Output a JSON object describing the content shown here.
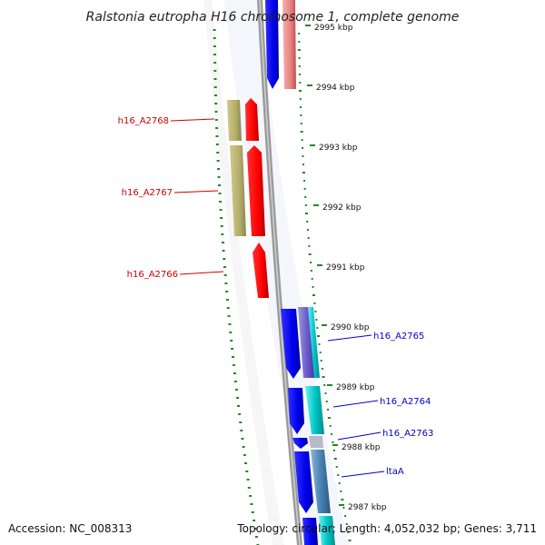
{
  "title": "Ralstonia eutropha H16 chromosome 1, complete genome",
  "footer": {
    "accession": "Accession: NC_008313",
    "topology": "Topology: circular; Length: 4,052,032 bp; Genes: 3,711"
  },
  "scale_labels": [
    "2995 kbp",
    "2994 kbp",
    "2993 kbp",
    "2992 kbp",
    "2991 kbp",
    "2990 kbp",
    "2989 kbp",
    "2988 kbp",
    "2987 kbp"
  ],
  "gene_labels": [
    {
      "name": "h16_A2768",
      "color": "#cc0000"
    },
    {
      "name": "h16_A2767",
      "color": "#cc0000"
    },
    {
      "name": "h16_A2766",
      "color": "#cc0000"
    },
    {
      "name": "h16_A2765",
      "color": "#0000cc"
    },
    {
      "name": "h16_A2764",
      "color": "#0000cc"
    },
    {
      "name": "h16_A2763",
      "color": "#0000cc"
    },
    {
      "name": "ltaA",
      "color": "#0000cc"
    }
  ],
  "colors": {
    "reverse_cds": "#ff0000",
    "reverse_cog": "#b4ad6a",
    "forward_cds": "#0000ee",
    "forward_cog": "#00c8c8",
    "gc_tick": "#228822",
    "backbone": "#888888"
  }
}
